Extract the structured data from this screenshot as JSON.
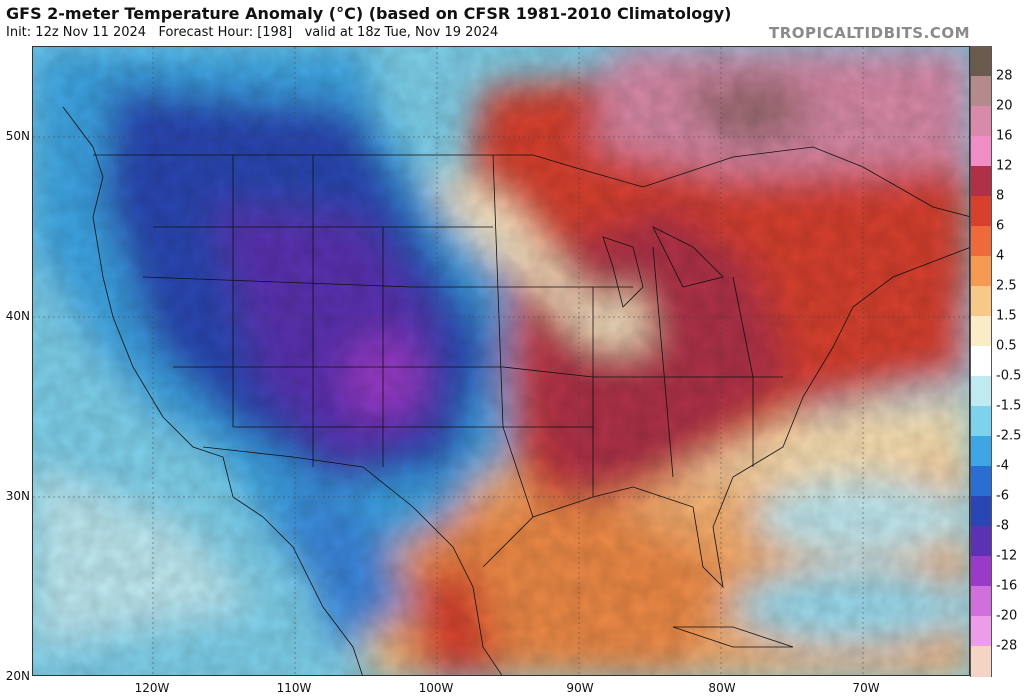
{
  "header": {
    "title": "GFS 2-meter Temperature Anomaly (°C) (based on CFSR 1981-2010 Climatology)",
    "init": "Init: 12z Nov 11 2024",
    "forecast_hour": "Forecast Hour: [198]",
    "valid": "valid at 18z Tue, Nov 19 2024",
    "brand": "TROPICALTIDBITS.COM"
  },
  "map": {
    "lat_labels": [
      "50N",
      "40N",
      "30N",
      "20N"
    ],
    "lon_labels": [
      "120W",
      "110W",
      "100W",
      "90W",
      "80W",
      "70W"
    ]
  },
  "legend": {
    "labels": [
      "28",
      "20",
      "16",
      "12",
      "8",
      "6",
      "4",
      "2.5",
      "1.5",
      "0.5",
      "-0.5",
      "-1.5",
      "-2.5",
      "-4",
      "-6",
      "-8",
      "-12",
      "-16",
      "-20",
      "-28"
    ],
    "colors": [
      "#6b5a4e",
      "#b58a8a",
      "#d98aa8",
      "#f08cc6",
      "#b03048",
      "#d8402e",
      "#ee6a3a",
      "#f49a52",
      "#f8c888",
      "#fbecc8",
      "#ffffff",
      "#bfeaf2",
      "#7fd2ec",
      "#3ea6e4",
      "#2a6ed2",
      "#2a46b4",
      "#5a32b2",
      "#9a3ac8",
      "#d070dc",
      "#ec9ce8",
      "#f4d4c4"
    ]
  }
}
